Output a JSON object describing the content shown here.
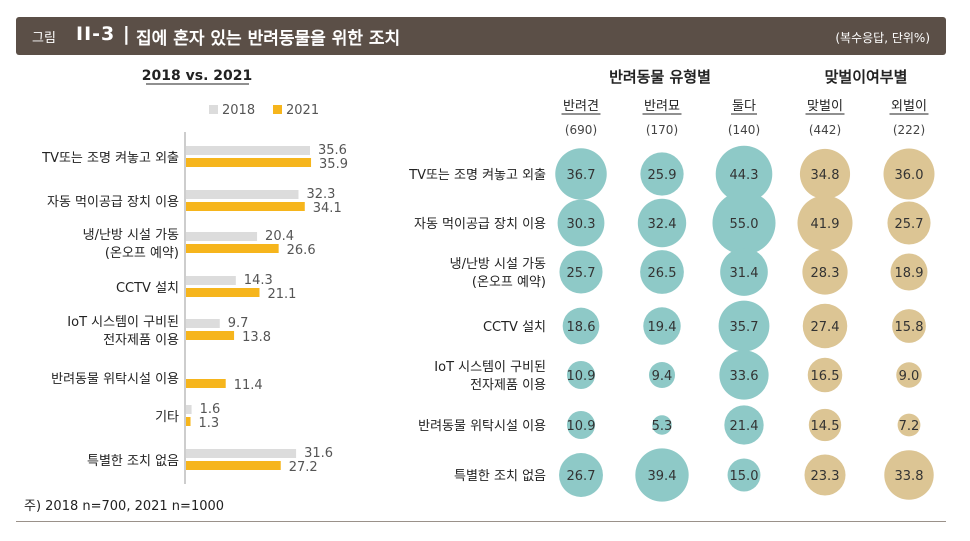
{
  "header": {
    "figure_label": "그림",
    "figure_number": "II-3 |",
    "title": "집에 혼자 있는 반려동물을 위한 조치",
    "unit_note": "(복수응답, 단위%)"
  },
  "footnote": "주) 2018 n=700, 2021 n=1000",
  "colors": {
    "c2018": "#dcdcdc",
    "c2021": "#f6b51c",
    "teal": "#8ec9c7",
    "tan": "#dcc594",
    "header_bg": "#5b4f47"
  },
  "chart_data": [
    {
      "type": "bar",
      "orientation": "horizontal",
      "title": "2018 vs. 2021",
      "categories": [
        "TV또는 조명 켜놓고 외출",
        "자동 먹이공급 장치 이용",
        "냉/난방 시설 가동\n(온오프 예약)",
        "CCTV 설치",
        "IoT 시스템이 구비된\n전자제품 이용",
        "반려동물 위탁시설 이용",
        "기타",
        "특별한 조치 없음"
      ],
      "series": [
        {
          "name": "2018",
          "values": [
            35.6,
            32.3,
            20.4,
            14.3,
            9.7,
            null,
            1.6,
            31.6
          ]
        },
        {
          "name": "2021",
          "values": [
            35.9,
            34.1,
            26.6,
            21.1,
            13.8,
            11.4,
            1.3,
            27.2
          ]
        }
      ],
      "legend_position": "top",
      "grid": false
    },
    {
      "type": "bubble",
      "groups": [
        {
          "title": "반려동물 유형별",
          "color": "teal",
          "columns": [
            {
              "name": "반려견",
              "n": "(690)",
              "values": [
                36.7,
                30.3,
                25.7,
                18.6,
                10.9,
                10.9,
                26.7
              ]
            },
            {
              "name": "반려묘",
              "n": "(170)",
              "values": [
                25.9,
                32.4,
                26.5,
                19.4,
                9.4,
                5.3,
                39.4
              ]
            },
            {
              "name": "둘다",
              "n": "(140)",
              "values": [
                44.3,
                55.0,
                31.4,
                35.7,
                33.6,
                21.4,
                15.0
              ]
            }
          ]
        },
        {
          "title": "맞벌이여부별",
          "color": "tan",
          "columns": [
            {
              "name": "맞벌이",
              "n": "(442)",
              "values": [
                34.8,
                41.9,
                28.3,
                27.4,
                16.5,
                14.5,
                23.3
              ]
            },
            {
              "name": "외벌이",
              "n": "(222)",
              "values": [
                36.0,
                25.7,
                18.9,
                15.8,
                9.0,
                7.2,
                33.8
              ]
            }
          ]
        }
      ],
      "rows": [
        "TV또는 조명 켜놓고 외출",
        "자동 먹이공급 장치 이용",
        "냉/난방 시설 가동\n(온오프 예약)",
        "CCTV 설치",
        "IoT 시스템이 구비된\n전자제품 이용",
        "반려동물 위탁시설 이용",
        "특별한 조치 없음"
      ]
    }
  ]
}
